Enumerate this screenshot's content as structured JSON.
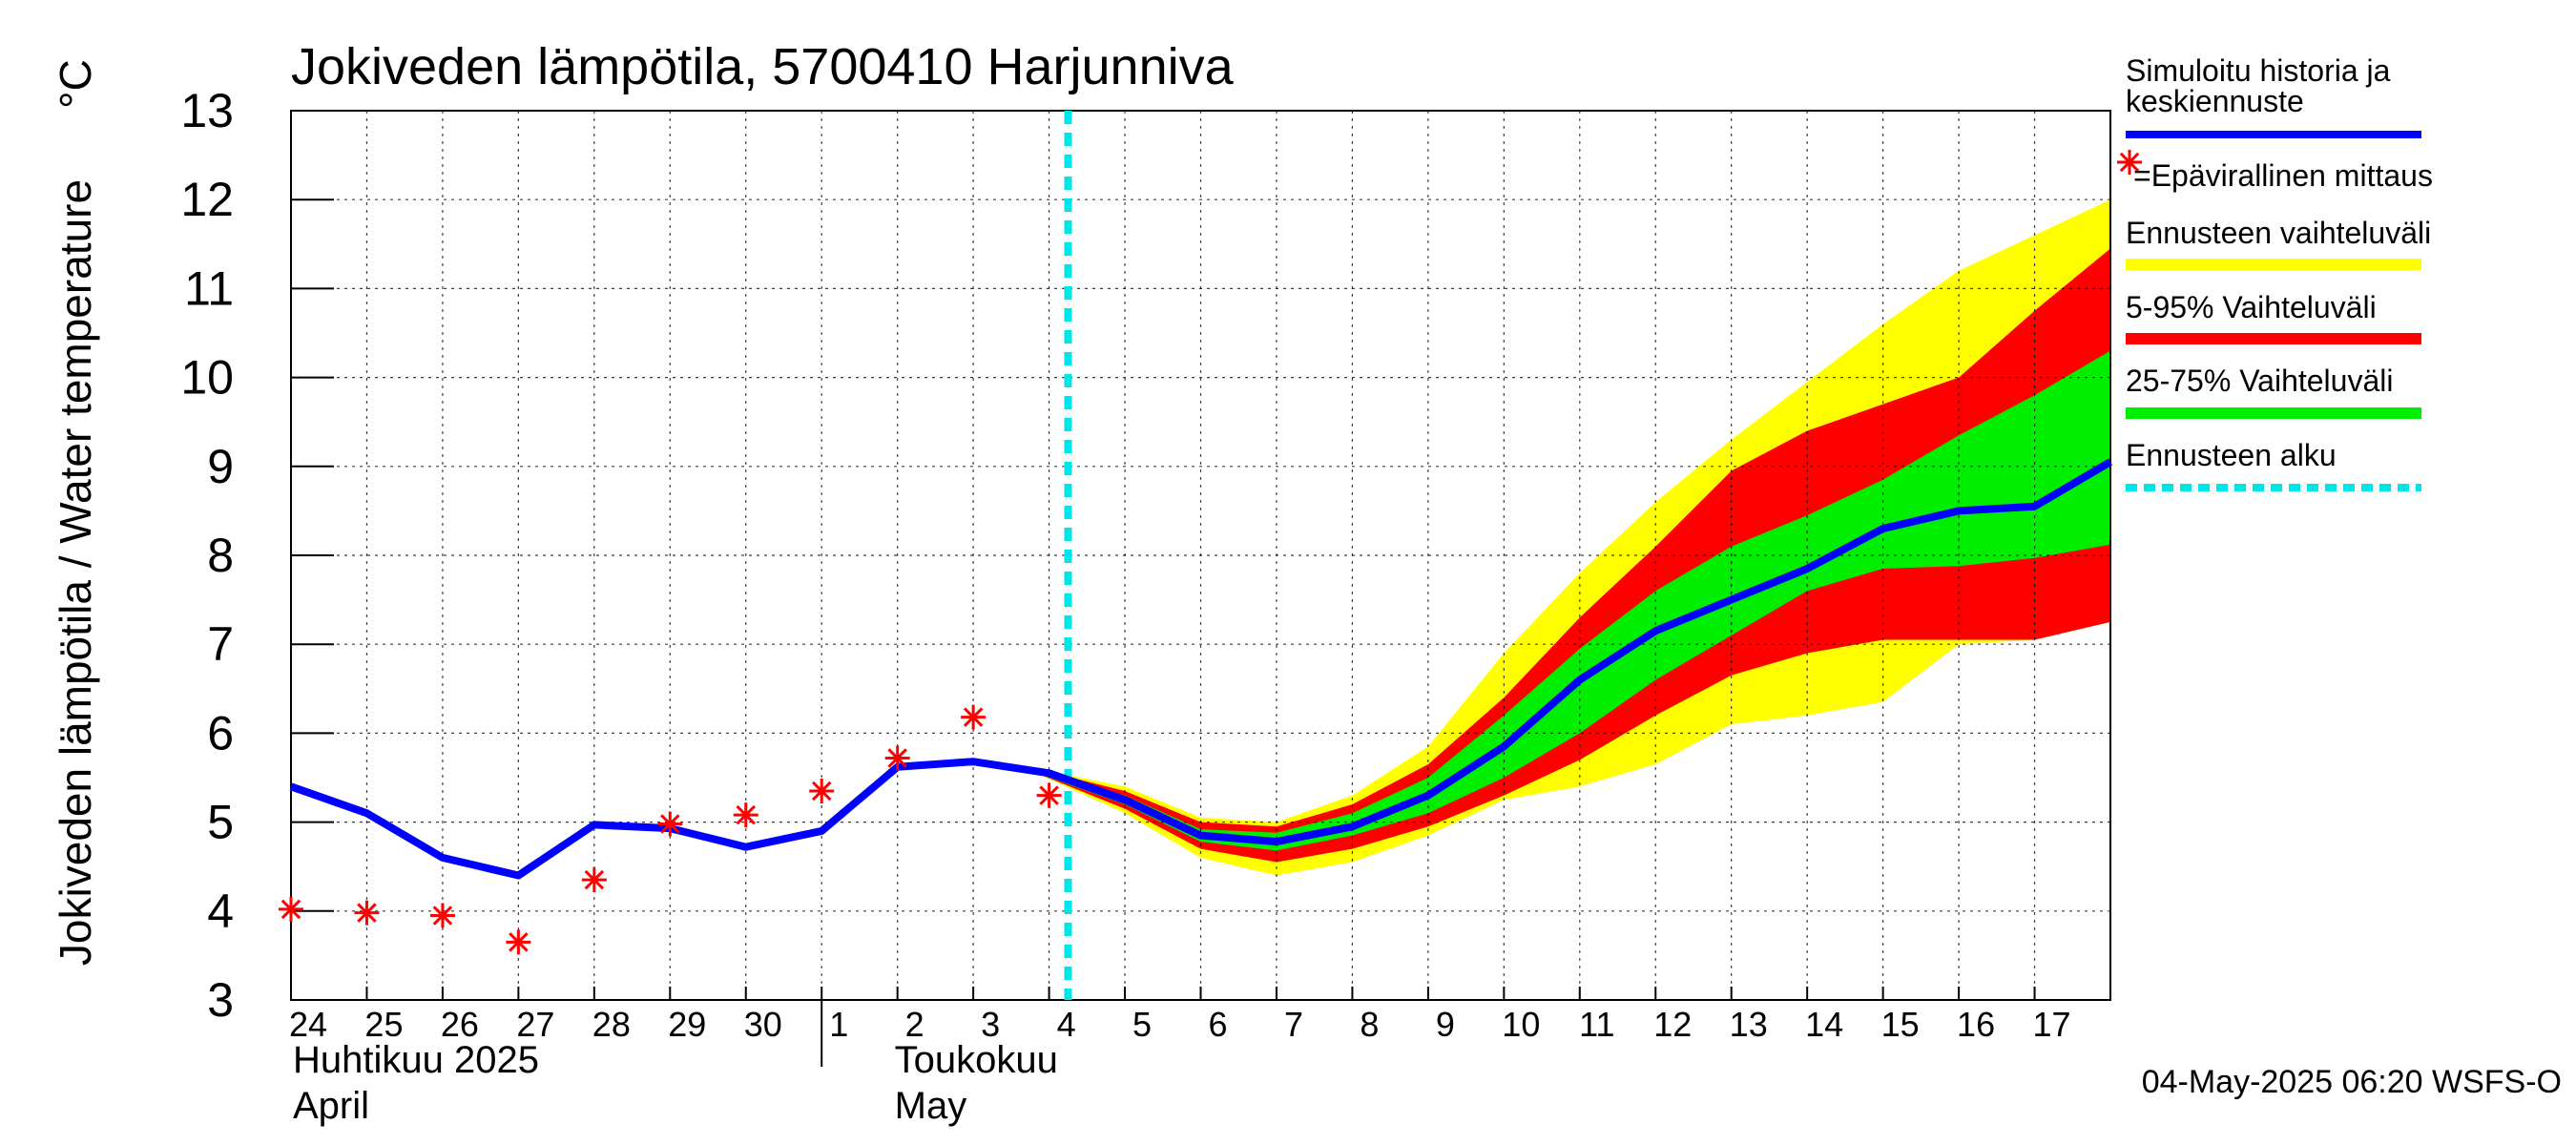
{
  "chart_data": {
    "type": "line",
    "title": "Jokiveden lämpötila, 5700410 Harjunniva",
    "ylabel": "Jokiveden lämpötila / Water temperature",
    "yunit": "°C",
    "ylim": [
      3,
      13
    ],
    "yticks": [
      "3",
      "4",
      "5",
      "6",
      "7",
      "8",
      "9",
      "10",
      "11",
      "12",
      "13"
    ],
    "grid": true,
    "xlim": [
      "2025-04-24",
      "2025-05-18"
    ],
    "x_day_labels": [
      "24",
      "25",
      "26",
      "27",
      "28",
      "29",
      "30",
      "1",
      "2",
      "3",
      "4",
      "5",
      "6",
      "7",
      "8",
      "9",
      "10",
      "11",
      "12",
      "13",
      "14",
      "15",
      "16",
      "17"
    ],
    "month_labels": [
      {
        "fi": "Huhtikuu  2025",
        "en": "April"
      },
      {
        "fi": "Toukokuu",
        "en": "May"
      }
    ],
    "forecast_start": "2025-05-04T06:00",
    "simulated": {
      "name": "Simuloitu historia ja keskiennuste",
      "color": "#0000ff",
      "x": [
        "2025-04-24",
        "2025-04-25",
        "2025-04-26",
        "2025-04-27",
        "2025-04-28",
        "2025-04-29",
        "2025-04-30",
        "2025-05-01",
        "2025-05-02",
        "2025-05-03",
        "2025-05-04",
        "2025-05-05",
        "2025-05-06",
        "2025-05-07",
        "2025-05-08",
        "2025-05-09",
        "2025-05-10",
        "2025-05-11",
        "2025-05-12",
        "2025-05-13",
        "2025-05-14",
        "2025-05-15",
        "2025-05-16",
        "2025-05-17",
        "2025-05-18"
      ],
      "y": [
        5.4,
        5.1,
        4.6,
        4.4,
        4.97,
        4.93,
        4.72,
        4.9,
        5.62,
        5.68,
        5.55,
        5.25,
        4.85,
        4.78,
        4.95,
        5.3,
        5.85,
        6.6,
        7.15,
        7.5,
        7.85,
        8.3,
        8.5,
        8.55,
        9.05
      ]
    },
    "observations": {
      "name": "=Epävirallinen mittaus",
      "color": "#ff0000",
      "x": [
        "2025-04-24",
        "2025-04-25",
        "2025-04-26",
        "2025-04-27",
        "2025-04-28",
        "2025-04-29",
        "2025-04-30",
        "2025-05-01",
        "2025-05-02",
        "2025-05-03",
        "2025-05-04"
      ],
      "y": [
        4.02,
        3.98,
        3.95,
        3.65,
        4.35,
        4.98,
        5.08,
        5.35,
        5.72,
        6.18,
        5.3
      ]
    },
    "bands": {
      "x": [
        "2025-05-03T20:00",
        "2025-05-05",
        "2025-05-06",
        "2025-05-07",
        "2025-05-08",
        "2025-05-09",
        "2025-05-10",
        "2025-05-11",
        "2025-05-12",
        "2025-05-13",
        "2025-05-14",
        "2025-05-15",
        "2025-05-16",
        "2025-05-17",
        "2025-05-18"
      ],
      "range": {
        "name": "Ennusteen vaihteluväli",
        "color": "#ffff00",
        "lower": [
          5.55,
          5.1,
          4.6,
          4.4,
          4.55,
          4.85,
          5.25,
          5.4,
          5.65,
          6.1,
          6.2,
          6.35,
          7.0,
          7.05,
          7.25
        ],
        "upper": [
          5.6,
          5.4,
          5.05,
          5.0,
          5.3,
          5.85,
          6.9,
          7.8,
          8.6,
          9.3,
          9.95,
          10.6,
          11.2,
          11.6,
          12.0
        ]
      },
      "p5_95": {
        "name": "5-95% Vaihteluväli",
        "color": "#ff0000",
        "lower": [
          5.55,
          5.15,
          4.7,
          4.55,
          4.7,
          4.95,
          5.3,
          5.7,
          6.2,
          6.65,
          6.9,
          7.05,
          7.05,
          7.05,
          7.25
        ],
        "upper": [
          5.6,
          5.35,
          5.0,
          4.95,
          5.2,
          5.65,
          6.4,
          7.3,
          8.1,
          8.95,
          9.4,
          9.7,
          10.0,
          10.75,
          11.45
        ]
      },
      "p25_75": {
        "name": "25-75% Vaihteluväli",
        "color": "#00ee00",
        "lower": [
          5.55,
          5.2,
          4.78,
          4.68,
          4.85,
          5.1,
          5.5,
          6.0,
          6.6,
          7.1,
          7.6,
          7.85,
          7.88,
          7.97,
          8.12
        ],
        "upper": [
          5.58,
          5.3,
          4.92,
          4.88,
          5.1,
          5.5,
          6.2,
          6.95,
          7.6,
          8.1,
          8.45,
          8.85,
          9.35,
          9.8,
          10.3
        ]
      }
    },
    "forecast_line": {
      "name": "Ennusteen alku",
      "color": "#00e5e5"
    },
    "legend": {
      "position": "right",
      "simulated_lines": [
        "Simuloitu historia ja",
        "keskiennuste"
      ],
      "observations": "=Epävirallinen mittaus",
      "range": "Ennusteen vaihteluväli",
      "p5_95": "5-95% Vaihteluväli",
      "p25_75": "25-75% Vaihteluväli",
      "forecast_start": "Ennusteen alku"
    },
    "footer": "04-May-2025 06:20 WSFS-O"
  }
}
